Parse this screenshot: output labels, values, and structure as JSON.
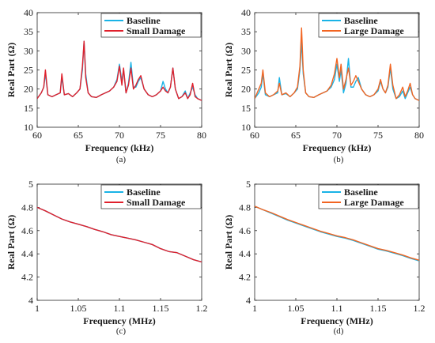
{
  "colors": {
    "baseline": "#1ab3e6",
    "small_damage": "#e0202c",
    "large_damage": "#f26522"
  },
  "chart_data": [
    {
      "type": "line",
      "caption": "(a)",
      "xlabel": "Frequency (kHz)",
      "ylabel": "Real Part (Ω)",
      "xlim": [
        60,
        80
      ],
      "ylim": [
        10,
        40
      ],
      "xticks": [
        60,
        65,
        70,
        75,
        80
      ],
      "yticks": [
        10,
        15,
        20,
        25,
        30,
        35,
        40
      ],
      "legend": "top-right",
      "series": [
        {
          "name": "Baseline",
          "color_key": "baseline",
          "x": [
            60,
            60.5,
            60.8,
            61.0,
            61.3,
            61.8,
            62.3,
            62.8,
            63.0,
            63.3,
            63.8,
            64.3,
            64.8,
            65.2,
            65.5,
            65.7,
            65.9,
            66.2,
            66.6,
            67.2,
            67.8,
            68.3,
            68.8,
            69.3,
            69.7,
            70.0,
            70.3,
            70.5,
            70.8,
            71.1,
            71.4,
            71.7,
            72.0,
            72.3,
            72.6,
            73.0,
            73.5,
            74.0,
            74.5,
            75.0,
            75.3,
            75.6,
            75.9,
            76.2,
            76.5,
            76.8,
            77.2,
            77.6,
            78.0,
            78.3,
            78.6,
            78.9,
            79.2,
            79.5,
            80
          ],
          "y": [
            17.5,
            19,
            20.5,
            24,
            18.5,
            18,
            18.5,
            19,
            23,
            18.5,
            18.8,
            18,
            19,
            20,
            25,
            32.5,
            24,
            19,
            18,
            17.8,
            18.5,
            19,
            19.5,
            20.5,
            22.5,
            26.5,
            22,
            25,
            19,
            21.5,
            27,
            20.5,
            20.5,
            22,
            23,
            20,
            18.5,
            18,
            18.5,
            19.5,
            22,
            20,
            19,
            20.5,
            25.5,
            20,
            17.5,
            18,
            19.5,
            17.5,
            19,
            20.5,
            18.5,
            17.5,
            17
          ]
        },
        {
          "name": "Small Damage",
          "color_key": "small_damage",
          "x": [
            60,
            60.5,
            60.8,
            61.0,
            61.3,
            61.8,
            62.3,
            62.8,
            63.0,
            63.3,
            63.8,
            64.3,
            64.8,
            65.2,
            65.5,
            65.7,
            65.9,
            66.2,
            66.6,
            67.2,
            67.8,
            68.3,
            68.8,
            69.3,
            69.7,
            70.0,
            70.3,
            70.5,
            70.8,
            71.1,
            71.4,
            71.7,
            72.0,
            72.3,
            72.6,
            73.0,
            73.5,
            74.0,
            74.5,
            75.0,
            75.3,
            75.6,
            75.9,
            76.2,
            76.5,
            76.8,
            77.2,
            77.6,
            78.0,
            78.3,
            78.6,
            78.9,
            79.2,
            79.5,
            80
          ],
          "y": [
            17.5,
            19,
            20.5,
            25,
            18.5,
            18,
            18.5,
            19,
            24,
            18.5,
            18.8,
            18,
            19,
            20,
            26,
            32.5,
            23,
            19,
            18,
            17.8,
            18.5,
            19,
            19.5,
            20.5,
            22,
            26,
            21,
            25.5,
            19,
            21,
            25.5,
            20,
            21,
            22.5,
            23.5,
            20,
            18.5,
            18,
            18.5,
            19.5,
            20.5,
            19.5,
            19,
            20.5,
            25.5,
            20,
            17.5,
            18,
            19,
            17.5,
            18.5,
            21.5,
            18,
            17.5,
            17
          ]
        }
      ]
    },
    {
      "type": "line",
      "caption": "(b)",
      "xlabel": "Frequency (kHz)",
      "ylabel": "Real Part (Ω)",
      "xlim": [
        60,
        80
      ],
      "ylim": [
        10,
        40
      ],
      "xticks": [
        60,
        65,
        70,
        75,
        80
      ],
      "yticks": [
        10,
        15,
        20,
        25,
        30,
        35,
        40
      ],
      "legend": "top-right",
      "series": [
        {
          "name": "Baseline",
          "color_key": "baseline",
          "x": [
            60,
            60.5,
            60.8,
            61.0,
            61.3,
            61.8,
            62.3,
            62.8,
            63.0,
            63.3,
            63.8,
            64.3,
            64.8,
            65.2,
            65.5,
            65.7,
            65.9,
            66.2,
            66.6,
            67.2,
            67.8,
            68.3,
            68.8,
            69.3,
            69.7,
            70.0,
            70.3,
            70.5,
            70.8,
            71.1,
            71.4,
            71.7,
            72.0,
            72.3,
            72.6,
            73.0,
            73.5,
            74.0,
            74.5,
            75.0,
            75.3,
            75.6,
            75.9,
            76.2,
            76.5,
            76.8,
            77.2,
            77.6,
            78.0,
            78.3,
            78.6,
            78.9,
            79.2,
            79.5,
            80
          ],
          "y": [
            17.5,
            19,
            20.5,
            24,
            18.5,
            18,
            18.5,
            19,
            23,
            18.5,
            18.8,
            18,
            19,
            20,
            25,
            32.5,
            24,
            19,
            18,
            17.8,
            18.5,
            19,
            19.5,
            20.5,
            22.5,
            26.5,
            22,
            25,
            19,
            21.5,
            28,
            20.5,
            20.5,
            22,
            23,
            20,
            18.5,
            18,
            18.5,
            19.5,
            22,
            20,
            19,
            20.5,
            25.5,
            20,
            17.5,
            18,
            19.5,
            17.5,
            19,
            20.5,
            18.5,
            17.5,
            17
          ]
        },
        {
          "name": "Large Damage",
          "color_key": "large_damage",
          "x": [
            60,
            60.5,
            60.8,
            61.0,
            61.3,
            61.8,
            62.3,
            62.8,
            63.0,
            63.3,
            63.8,
            64.3,
            64.8,
            65.2,
            65.5,
            65.7,
            65.9,
            66.2,
            66.6,
            67.2,
            67.8,
            68.3,
            68.8,
            69.3,
            69.7,
            70.0,
            70.3,
            70.5,
            70.8,
            71.1,
            71.4,
            71.7,
            72.0,
            72.3,
            72.6,
            73.0,
            73.5,
            74.0,
            74.5,
            75.0,
            75.3,
            75.6,
            75.9,
            76.2,
            76.5,
            76.8,
            77.2,
            77.6,
            78.0,
            78.3,
            78.6,
            78.9,
            79.2,
            79.5,
            80
          ],
          "y": [
            17.5,
            20,
            21.5,
            25,
            19,
            18,
            18.5,
            19.5,
            21.5,
            18.5,
            19,
            18,
            19,
            20.5,
            26,
            36,
            25,
            19,
            18,
            17.8,
            18.5,
            19,
            19.5,
            21,
            24,
            28,
            23,
            26.5,
            20,
            22.5,
            25.5,
            21,
            22,
            23.5,
            22,
            20,
            18.5,
            18,
            18.5,
            20,
            22.5,
            20,
            19,
            21,
            26.5,
            21,
            17.5,
            18.5,
            20.5,
            18,
            19.5,
            21.5,
            18.5,
            17.5,
            17
          ]
        }
      ]
    },
    {
      "type": "line",
      "caption": "(c)",
      "xlabel": "Frequency (MHz)",
      "ylabel": "Real Part (Ω)",
      "xlim": [
        1,
        1.2
      ],
      "ylim": [
        4,
        5
      ],
      "xticks": [
        1,
        1.05,
        1.1,
        1.15,
        1.2
      ],
      "yticks": [
        4,
        4.2,
        4.4,
        4.6,
        4.8,
        5
      ],
      "legend": "top-right",
      "series": [
        {
          "name": "Baseline",
          "color_key": "baseline",
          "x": [
            1.0,
            1.01,
            1.02,
            1.03,
            1.04,
            1.05,
            1.06,
            1.07,
            1.08,
            1.09,
            1.1,
            1.11,
            1.12,
            1.13,
            1.14,
            1.15,
            1.16,
            1.17,
            1.18,
            1.19,
            1.2
          ],
          "y": [
            4.8,
            4.77,
            4.735,
            4.7,
            4.675,
            4.655,
            4.635,
            4.61,
            4.59,
            4.565,
            4.55,
            4.535,
            4.52,
            4.5,
            4.48,
            4.445,
            4.42,
            4.41,
            4.38,
            4.35,
            4.33
          ]
        },
        {
          "name": "Small Damage",
          "color_key": "small_damage",
          "x": [
            1.0,
            1.01,
            1.02,
            1.03,
            1.04,
            1.05,
            1.06,
            1.07,
            1.08,
            1.09,
            1.1,
            1.11,
            1.12,
            1.13,
            1.14,
            1.15,
            1.16,
            1.17,
            1.18,
            1.19,
            1.2
          ],
          "y": [
            4.8,
            4.77,
            4.735,
            4.7,
            4.675,
            4.655,
            4.635,
            4.61,
            4.59,
            4.565,
            4.55,
            4.535,
            4.52,
            4.5,
            4.48,
            4.445,
            4.42,
            4.41,
            4.38,
            4.35,
            4.33
          ]
        }
      ]
    },
    {
      "type": "line",
      "caption": "(d)",
      "xlabel": "Frequency (MHz)",
      "ylabel": "Real Part (Ω)",
      "xlim": [
        1,
        1.2
      ],
      "ylim": [
        4,
        5
      ],
      "xticks": [
        1,
        1.05,
        1.1,
        1.15,
        1.2
      ],
      "yticks": [
        4,
        4.2,
        4.4,
        4.6,
        4.8,
        5
      ],
      "legend": "top-right",
      "series": [
        {
          "name": "Baseline",
          "color_key": "baseline",
          "x": [
            1.0,
            1.01,
            1.02,
            1.03,
            1.04,
            1.05,
            1.06,
            1.07,
            1.08,
            1.09,
            1.1,
            1.11,
            1.12,
            1.13,
            1.14,
            1.15,
            1.16,
            1.17,
            1.18,
            1.19,
            1.2
          ],
          "y": [
            4.81,
            4.78,
            4.75,
            4.72,
            4.69,
            4.665,
            4.64,
            4.615,
            4.59,
            4.57,
            4.55,
            4.535,
            4.515,
            4.49,
            4.465,
            4.44,
            4.425,
            4.405,
            4.385,
            4.36,
            4.34
          ]
        },
        {
          "name": "Large Damage",
          "color_key": "large_damage",
          "x": [
            1.0,
            1.01,
            1.02,
            1.03,
            1.04,
            1.05,
            1.06,
            1.07,
            1.08,
            1.09,
            1.1,
            1.11,
            1.12,
            1.13,
            1.14,
            1.15,
            1.16,
            1.17,
            1.18,
            1.19,
            1.2
          ],
          "y": [
            4.81,
            4.78,
            4.755,
            4.725,
            4.695,
            4.67,
            4.645,
            4.62,
            4.595,
            4.575,
            4.555,
            4.54,
            4.52,
            4.495,
            4.47,
            4.445,
            4.43,
            4.41,
            4.39,
            4.365,
            4.345
          ]
        }
      ]
    }
  ]
}
